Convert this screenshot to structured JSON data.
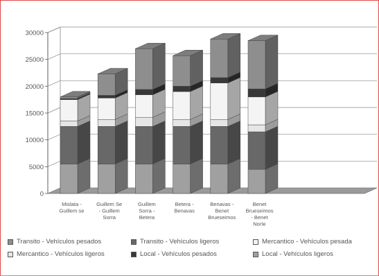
{
  "chart_data": {
    "type": "bar",
    "stacked": true,
    "three_d": true,
    "categories": [
      "Mislata -\nGuillem se",
      "Guillem Se\n- Guillem\nSorra",
      "Guillem\nSorra -\nBetera",
      "Betera -\nBenavas",
      "Benavas -\nBenet\nBrueseimos",
      "Benet\nBrueseimos\n- Benet\nNorte"
    ],
    "series": [
      {
        "name": "Local - Vehículos ligeros",
        "color": "#a0a0a0",
        "values": [
          5500,
          5500,
          5500,
          5500,
          5500,
          4500
        ]
      },
      {
        "name": "Transito - Vehículos ligeros",
        "color": "#686868",
        "values": [
          7000,
          7000,
          7000,
          7000,
          7000,
          7000
        ]
      },
      {
        "name": "Mercantico - Vehículos ligeros",
        "color": "#e6e6e6",
        "values": [
          1000,
          1300,
          1700,
          1300,
          1300,
          1300
        ]
      },
      {
        "name": "Mercantico - Vehículos pesada",
        "color": "#f4f4f4",
        "values": [
          4000,
          4000,
          4200,
          5200,
          6800,
          5200
        ]
      },
      {
        "name": "Local - Vehículos pesados",
        "color": "#383838",
        "values": [
          200,
          500,
          1000,
          1000,
          1000,
          1500
        ]
      },
      {
        "name": "Transito - Vehículos pesados",
        "color": "#8e8e8e",
        "values": [
          300,
          4000,
          7600,
          5700,
          7200,
          9000
        ]
      }
    ],
    "yticks": [
      0,
      5000,
      10000,
      15000,
      20000,
      25000,
      30000
    ],
    "ylim": [
      0,
      30000
    ],
    "grid": true,
    "legend_position": "bottom",
    "legend_order": [
      5,
      1,
      3,
      2,
      4,
      0
    ]
  }
}
